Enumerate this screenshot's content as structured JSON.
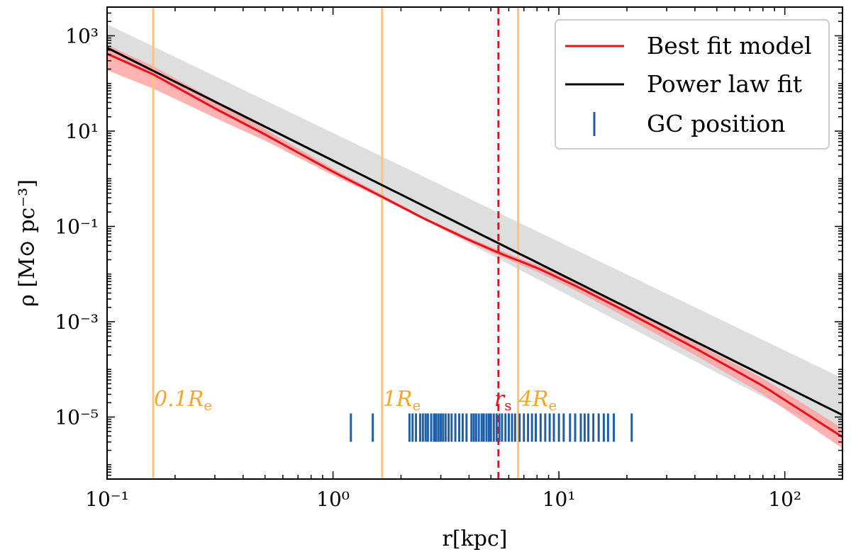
{
  "chart_data": {
    "type": "line",
    "xscale": "log",
    "yscale": "log",
    "xlabel": "r[kpc]",
    "ylabel": "ρ [M⊙ pc⁻³]",
    "xlim": [
      0.1,
      180
    ],
    "ylim": [
      5e-07,
      4000
    ],
    "x_ticks": [
      {
        "value": 0.1,
        "label": "10⁻¹"
      },
      {
        "value": 1,
        "label": "10⁰"
      },
      {
        "value": 10,
        "label": "10¹"
      },
      {
        "value": 100,
        "label": "10²"
      }
    ],
    "y_ticks": [
      {
        "value": 1e-05,
        "label": "10⁻⁵"
      },
      {
        "value": 0.001,
        "label": "10⁻³"
      },
      {
        "value": 0.1,
        "label": "10⁻¹"
      },
      {
        "value": 10,
        "label": "10¹"
      },
      {
        "value": 1000,
        "label": "10³"
      }
    ],
    "colors": {
      "best_fit": "#e8101a",
      "best_fit_band": "#ff9a9a",
      "power_law": "#000000",
      "power_law_band": "#bdbdbd",
      "gc": "#1f5ea8",
      "re_lines": "#ffc27a",
      "re_text": "#f5a52a",
      "rs_line": "#e8101a"
    },
    "series": [
      {
        "name": "Best fit model",
        "color": "#e8101a",
        "x": [
          0.1,
          0.16,
          0.3,
          0.5,
          1,
          1.6,
          2.5,
          4,
          5.5,
          8,
          12,
          20,
          40,
          80,
          180
        ],
        "y": [
          420,
          155,
          30,
          8.5,
          1.4,
          0.45,
          0.15,
          0.052,
          0.027,
          0.0135,
          0.0055,
          0.0016,
          0.00028,
          4.5e-05,
          3.8e-06
        ],
        "band_lower": [
          190,
          78,
          19,
          6.3,
          1.18,
          0.41,
          0.14,
          0.047,
          0.0235,
          0.0112,
          0.0044,
          0.0012,
          0.0002,
          3e-05,
          2.2e-06
        ],
        "band_upper": [
          650,
          230,
          45,
          11,
          1.62,
          0.5,
          0.16,
          0.058,
          0.031,
          0.0158,
          0.0067,
          0.002,
          0.00036,
          6.5e-05,
          5.8e-06
        ]
      },
      {
        "name": "Power law fit",
        "color": "#000000",
        "x": [
          0.1,
          180
        ],
        "y": [
          560,
          1.1e-05
        ],
        "band_lower": [
          400,
          3.6e-06
        ],
        "band_upper": [
          1750,
          6.5e-05
        ]
      }
    ],
    "gc_positions": [
      1.2,
      1.5,
      2.18,
      2.25,
      2.33,
      2.43,
      2.5,
      2.57,
      2.63,
      2.72,
      2.8,
      2.86,
      2.93,
      3.0,
      3.07,
      3.15,
      3.25,
      3.35,
      3.48,
      3.62,
      3.75,
      3.9,
      4.1,
      4.2,
      4.3,
      4.42,
      4.55,
      4.65,
      4.78,
      4.9,
      5.0,
      5.15,
      5.3,
      5.45,
      5.6,
      5.8,
      6.0,
      6.2,
      6.4,
      6.7,
      7.0,
      7.3,
      7.6,
      7.9,
      8.3,
      8.7,
      9.1,
      9.5,
      10.0,
      10.5,
      11.2,
      11.8,
      12.5,
      13.0,
      13.5,
      14.2,
      15.0,
      15.8,
      16.5,
      17.5,
      21.0
    ],
    "gc_y": 6e-06,
    "vertical_lines": [
      {
        "x": 0.16,
        "label": "0.1R",
        "subscript": "e",
        "style": "solid",
        "color": "#ffc27a",
        "text_color": "#f5a52a"
      },
      {
        "x": 1.65,
        "label": "1R",
        "subscript": "e",
        "style": "solid",
        "color": "#ffc27a",
        "text_color": "#f5a52a"
      },
      {
        "x": 6.6,
        "label": "4R",
        "subscript": "e",
        "style": "solid",
        "color": "#ffc27a",
        "text_color": "#f5a52a"
      },
      {
        "x": 5.4,
        "label": "r",
        "subscript": "s",
        "style": "dashed",
        "color": "#e8101a",
        "text_color": "#e8101a"
      }
    ],
    "legend": {
      "position": "top-right",
      "entries": [
        {
          "label": "Best fit model",
          "kind": "line",
          "color": "#e8101a"
        },
        {
          "label": "Power law fit",
          "kind": "line",
          "color": "#000000"
        },
        {
          "label": "GC position",
          "kind": "tick",
          "color": "#1f5ea8"
        }
      ]
    }
  }
}
